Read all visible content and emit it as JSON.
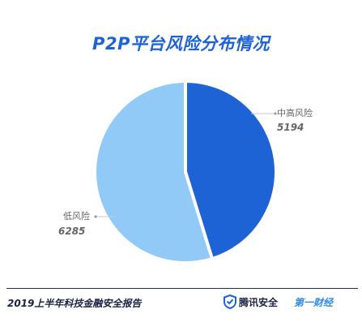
{
  "chart_data": {
    "type": "pie",
    "title": "P2P平台风险分布情况",
    "slices": [
      {
        "label": "中高风险",
        "value": 5194,
        "color": "#1e63d6"
      },
      {
        "label": "低风险",
        "value": 6285,
        "color": "#91c9f7"
      }
    ],
    "legend": "none"
  },
  "footer": {
    "report_title": "2019上半年科技金融安全报告",
    "brand_1": "腾讯安全",
    "brand_1_icon": "shield-icon",
    "brand_2": "第一财经"
  },
  "colors": {
    "title": "#1e63d6",
    "footer_text": "#1b2244",
    "brand_2": "#2f8bea"
  }
}
